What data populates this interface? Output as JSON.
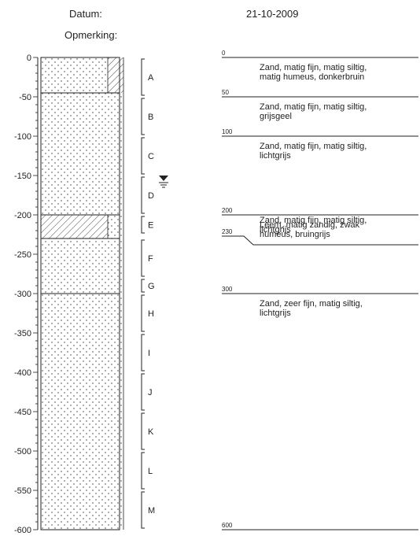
{
  "header": {
    "datum_label": "Datum:",
    "date_value": "21-10-2009",
    "opmerking_label": "Opmerking:"
  },
  "depth_axis": {
    "ticks": [
      "0",
      "-50",
      "-100",
      "-150",
      "-200",
      "-250",
      "-300",
      "-350",
      "-400",
      "-450",
      "-500",
      "-550",
      "-600"
    ]
  },
  "column": {
    "layers": [
      {
        "from": 0,
        "to": 45,
        "pattern": "dots-diag-lines"
      },
      {
        "from": 45,
        "to": 200,
        "pattern": "dots-diag"
      },
      {
        "from": 200,
        "to": 230,
        "pattern": "diag-dots-diag"
      },
      {
        "from": 230,
        "to": 300,
        "pattern": "dots-diag"
      },
      {
        "from": 300,
        "to": 600,
        "pattern": "dots-diag"
      }
    ]
  },
  "samples": [
    {
      "label": "A",
      "from": 0,
      "to": 50
    },
    {
      "label": "B",
      "from": 50,
      "to": 100
    },
    {
      "label": "C",
      "from": 100,
      "to": 150
    },
    {
      "label": "D",
      "from": 150,
      "to": 200
    },
    {
      "label": "E",
      "from": 200,
      "to": 225
    },
    {
      "label": "F",
      "from": 230,
      "to": 280
    },
    {
      "label": "G",
      "from": 280,
      "to": 300
    },
    {
      "label": "H",
      "from": 300,
      "to": 350
    },
    {
      "label": "I",
      "from": 350,
      "to": 400
    },
    {
      "label": "J",
      "from": 400,
      "to": 450
    },
    {
      "label": "K",
      "from": 450,
      "to": 500
    },
    {
      "label": "L",
      "from": 500,
      "to": 550
    },
    {
      "label": "M",
      "from": 550,
      "to": 600
    }
  ],
  "groundwater_depth": 155,
  "descriptions": {
    "boundaries": [
      {
        "label": "0",
        "depth": 0
      },
      {
        "label": "50",
        "depth": 50
      },
      {
        "label": "100",
        "depth": 100
      },
      {
        "label": "200",
        "depth": 200
      },
      {
        "label": "230",
        "depth": 230
      },
      {
        "label": "300",
        "depth": 300
      },
      {
        "label": "600",
        "depth": 600
      }
    ],
    "texts": [
      {
        "depth": 0,
        "lines": [
          "Zand, matig fijn, matig siltig,",
          "matig humeus, donkerbruin"
        ]
      },
      {
        "depth": 50,
        "lines": [
          "Zand, matig fijn, matig siltig,",
          "grijsgeel"
        ]
      },
      {
        "depth": 100,
        "lines": [
          "Zand, matig fijn, matig siltig,",
          "lichtgrijs"
        ]
      },
      {
        "depth": 200,
        "lines": [
          "Leem, matig zandig, zwak",
          "humeus, bruingrijs"
        ]
      },
      {
        "depth": 230,
        "lines": [
          "Zand, matig fijn, matig siltig,",
          "lichtgrijs"
        ]
      },
      {
        "depth": 300,
        "lines": [
          "Zand, zeer fijn, matig siltig,",
          "lichtgrijs"
        ]
      }
    ]
  }
}
